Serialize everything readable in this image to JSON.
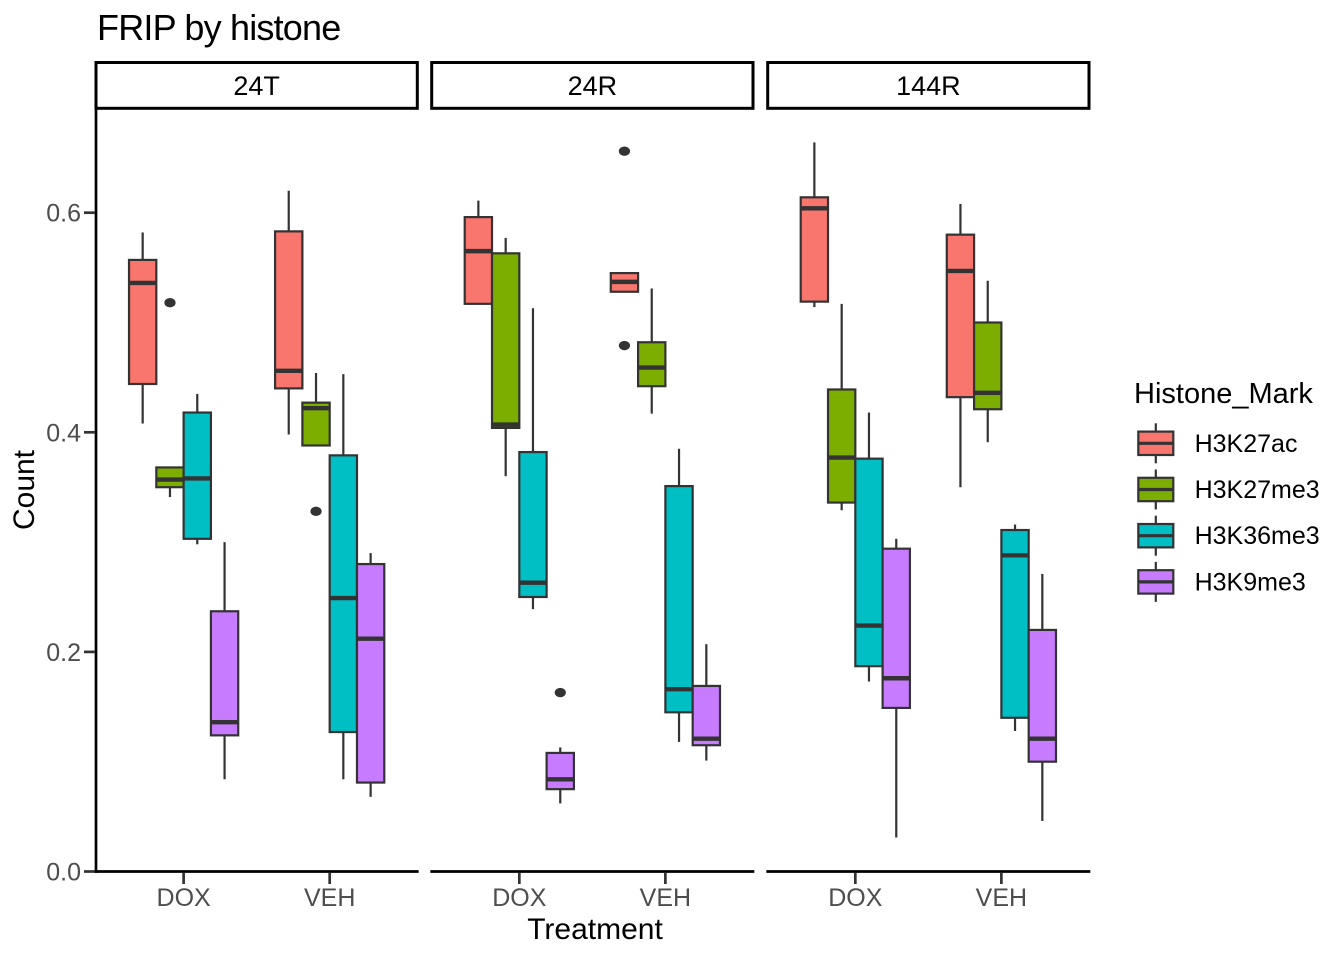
{
  "chart_data": {
    "type": "boxplot",
    "title": "FRIP by histone",
    "xlabel": "Treatment",
    "ylabel": "Count",
    "y_ticks": [
      "0.0",
      "0.2",
      "0.4",
      "0.6"
    ],
    "y_tick_values": [
      0,
      0.2,
      0.4,
      0.6
    ],
    "ylim": [
      0,
      0.695
    ],
    "grid": false,
    "treatments": [
      "DOX",
      "VEH"
    ],
    "legend": {
      "title": "Histone_Mark",
      "entries": [
        {
          "label": "H3K27ac",
          "color": "#F8766D"
        },
        {
          "label": "H3K27me3",
          "color": "#7CAE00"
        },
        {
          "label": "H3K36me3",
          "color": "#00BFC4"
        },
        {
          "label": "H3K9me3",
          "color": "#C77CFF"
        }
      ]
    },
    "style": {
      "box_border_color": "#333333",
      "outlier_color": "#333333",
      "axis_line_color": "#000000",
      "tick_label_color": "#4d4d4d"
    },
    "facets": [
      {
        "label": "24T",
        "groups": [
          {
            "treatment": "DOX",
            "boxes": [
              {
                "mark": "H3K27ac",
                "min": 0.408,
                "q1": 0.444,
                "med": 0.536,
                "q3": 0.557,
                "max": 0.582,
                "outliers": []
              },
              {
                "mark": "H3K27me3",
                "min": 0.341,
                "q1": 0.35,
                "med": 0.357,
                "q3": 0.368,
                "max": 0.368,
                "outliers": [
                  0.518
                ]
              },
              {
                "mark": "H3K36me3",
                "min": 0.298,
                "q1": 0.303,
                "med": 0.358,
                "q3": 0.418,
                "max": 0.435,
                "outliers": []
              },
              {
                "mark": "H3K9me3",
                "min": 0.084,
                "q1": 0.124,
                "med": 0.136,
                "q3": 0.237,
                "max": 0.3,
                "outliers": []
              }
            ]
          },
          {
            "treatment": "VEH",
            "boxes": [
              {
                "mark": "H3K27ac",
                "min": 0.398,
                "q1": 0.44,
                "med": 0.456,
                "q3": 0.583,
                "max": 0.62,
                "outliers": []
              },
              {
                "mark": "H3K27me3",
                "min": 0.388,
                "q1": 0.388,
                "med": 0.422,
                "q3": 0.427,
                "max": 0.454,
                "outliers": [
                  0.328
                ]
              },
              {
                "mark": "H3K36me3",
                "min": 0.084,
                "q1": 0.127,
                "med": 0.249,
                "q3": 0.379,
                "max": 0.453,
                "outliers": []
              },
              {
                "mark": "H3K9me3",
                "min": 0.068,
                "q1": 0.081,
                "med": 0.212,
                "q3": 0.28,
                "max": 0.29,
                "outliers": []
              }
            ]
          }
        ]
      },
      {
        "label": "24R",
        "groups": [
          {
            "treatment": "DOX",
            "boxes": [
              {
                "mark": "H3K27ac",
                "min": 0.517,
                "q1": 0.517,
                "med": 0.565,
                "q3": 0.596,
                "max": 0.611,
                "outliers": []
              },
              {
                "mark": "H3K27me3",
                "min": 0.36,
                "q1": 0.404,
                "med": 0.407,
                "q3": 0.563,
                "max": 0.577,
                "outliers": []
              },
              {
                "mark": "H3K36me3",
                "min": 0.239,
                "q1": 0.25,
                "med": 0.263,
                "q3": 0.382,
                "max": 0.513,
                "outliers": []
              },
              {
                "mark": "H3K9me3",
                "min": 0.062,
                "q1": 0.075,
                "med": 0.084,
                "q3": 0.108,
                "max": 0.113,
                "outliers": [
                  0.163
                ]
              }
            ]
          },
          {
            "treatment": "VEH",
            "boxes": [
              {
                "mark": "H3K27ac",
                "min": 0.528,
                "q1": 0.528,
                "med": 0.537,
                "q3": 0.545,
                "max": 0.545,
                "outliers": [
                  0.656,
                  0.479
                ]
              },
              {
                "mark": "H3K27me3",
                "min": 0.417,
                "q1": 0.442,
                "med": 0.459,
                "q3": 0.482,
                "max": 0.531,
                "outliers": []
              },
              {
                "mark": "H3K36me3",
                "min": 0.118,
                "q1": 0.145,
                "med": 0.166,
                "q3": 0.351,
                "max": 0.385,
                "outliers": []
              },
              {
                "mark": "H3K9me3",
                "min": 0.101,
                "q1": 0.115,
                "med": 0.121,
                "q3": 0.169,
                "max": 0.207,
                "outliers": []
              }
            ]
          }
        ]
      },
      {
        "label": "144R",
        "groups": [
          {
            "treatment": "DOX",
            "boxes": [
              {
                "mark": "H3K27ac",
                "min": 0.514,
                "q1": 0.519,
                "med": 0.604,
                "q3": 0.614,
                "max": 0.664,
                "outliers": []
              },
              {
                "mark": "H3K27me3",
                "min": 0.329,
                "q1": 0.336,
                "med": 0.377,
                "q3": 0.439,
                "max": 0.517,
                "outliers": []
              },
              {
                "mark": "H3K36me3",
                "min": 0.173,
                "q1": 0.187,
                "med": 0.224,
                "q3": 0.376,
                "max": 0.418,
                "outliers": []
              },
              {
                "mark": "H3K9me3",
                "min": 0.031,
                "q1": 0.149,
                "med": 0.176,
                "q3": 0.294,
                "max": 0.303,
                "outliers": []
              }
            ]
          },
          {
            "treatment": "VEH",
            "boxes": [
              {
                "mark": "H3K27ac",
                "min": 0.35,
                "q1": 0.432,
                "med": 0.547,
                "q3": 0.58,
                "max": 0.608,
                "outliers": []
              },
              {
                "mark": "H3K27me3",
                "min": 0.391,
                "q1": 0.421,
                "med": 0.436,
                "q3": 0.5,
                "max": 0.538,
                "outliers": []
              },
              {
                "mark": "H3K36me3",
                "min": 0.128,
                "q1": 0.14,
                "med": 0.288,
                "q3": 0.311,
                "max": 0.316,
                "outliers": []
              },
              {
                "mark": "H3K9me3",
                "min": 0.046,
                "q1": 0.1,
                "med": 0.121,
                "q3": 0.22,
                "max": 0.271,
                "outliers": []
              }
            ]
          }
        ]
      }
    ]
  }
}
